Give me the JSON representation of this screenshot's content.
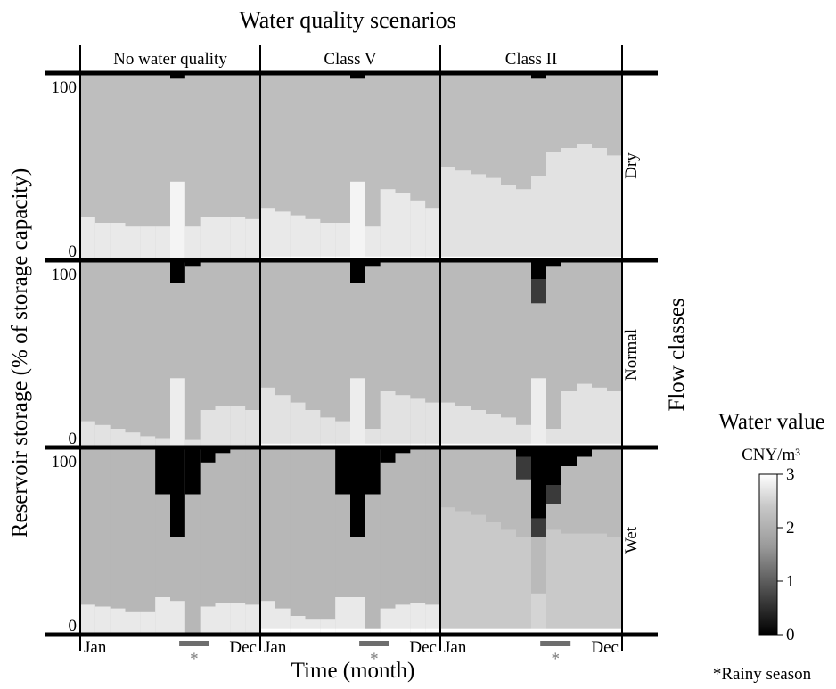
{
  "chart_data": {
    "type": "heatmap",
    "title": "Water quality scenarios",
    "xlabel": "Time (month)",
    "ylabel": "Reservoir storage (% of storage capacity)",
    "row_group_label": "Flow classes",
    "columns": [
      "No water quality",
      "Class V",
      "Class II"
    ],
    "rows": [
      "Dry",
      "Normal",
      "Wet"
    ],
    "x_tick_labels": [
      "Jan",
      "Dec"
    ],
    "y_ticks": [
      0,
      100
    ],
    "ylim": [
      0,
      100
    ],
    "months": 12,
    "rainy_season_marker": "*",
    "rainy_season_months": [
      7,
      9
    ],
    "footnote": "*Rainy season",
    "colorbar": {
      "title": "Water value",
      "unit": "CNY/m³",
      "range": [
        0,
        3
      ],
      "ticks": [
        "0",
        "1",
        "2",
        "3"
      ],
      "colors": [
        "#000000",
        "#bdbdbd",
        "#ffffff"
      ]
    },
    "panels": [
      {
        "row": "Dry",
        "column": "No water quality",
        "base": 2.1,
        "boundary": [
          23,
          20,
          20,
          18,
          18,
          18,
          42,
          18,
          23,
          23,
          23,
          22
        ],
        "lower": 2.7,
        "black_top": [
          0,
          0,
          0,
          0,
          0,
          0,
          3,
          0,
          0,
          0,
          0,
          0
        ],
        "black_mid": [
          0,
          0,
          0,
          0,
          0,
          0,
          0,
          0,
          0,
          0,
          0,
          0
        ],
        "highlight_to": [
          0,
          0,
          0,
          0,
          0,
          0,
          42,
          0,
          0,
          0,
          0,
          0
        ],
        "bottom_white": 1
      },
      {
        "row": "Dry",
        "column": "Class V",
        "base": 2.1,
        "boundary": [
          28,
          26,
          24,
          22,
          20,
          20,
          42,
          18,
          38,
          36,
          32,
          28
        ],
        "lower": 2.7,
        "black_top": [
          0,
          0,
          0,
          0,
          0,
          0,
          3,
          0,
          0,
          0,
          0,
          0
        ],
        "black_mid": [
          0,
          0,
          0,
          0,
          0,
          0,
          0,
          0,
          0,
          0,
          0,
          0
        ],
        "highlight_to": [
          0,
          0,
          0,
          0,
          0,
          0,
          42,
          0,
          0,
          0,
          0,
          0
        ],
        "bottom_white": 2
      },
      {
        "row": "Dry",
        "column": "Class II",
        "base": 2.1,
        "boundary": [
          50,
          48,
          46,
          44,
          40,
          38,
          45,
          58,
          60,
          62,
          60,
          56
        ],
        "lower": 2.6,
        "black_top": [
          0,
          0,
          0,
          0,
          0,
          0,
          3,
          0,
          0,
          0,
          0,
          0
        ],
        "black_mid": [
          0,
          0,
          0,
          0,
          0,
          0,
          0,
          0,
          0,
          0,
          0,
          0
        ],
        "highlight_to": [
          0,
          0,
          0,
          0,
          0,
          0,
          0,
          0,
          0,
          0,
          0,
          0
        ],
        "bottom_white": 2
      },
      {
        "row": "Normal",
        "column": "No water quality",
        "base": 2.05,
        "boundary": [
          14,
          12,
          10,
          8,
          6,
          5,
          37,
          4,
          20,
          22,
          22,
          20
        ],
        "lower": 2.6,
        "black_top": [
          0,
          0,
          0,
          0,
          0,
          0,
          12,
          3,
          0,
          0,
          0,
          0
        ],
        "black_mid": [
          0,
          0,
          0,
          0,
          0,
          0,
          0,
          0,
          0,
          0,
          0,
          0
        ],
        "highlight_to": [
          0,
          0,
          0,
          0,
          0,
          0,
          37,
          0,
          0,
          0,
          0,
          0
        ],
        "bottom_white": 1
      },
      {
        "row": "Normal",
        "column": "Class V",
        "base": 2.05,
        "boundary": [
          32,
          28,
          24,
          20,
          16,
          14,
          37,
          10,
          30,
          28,
          26,
          24
        ],
        "lower": 2.6,
        "black_top": [
          0,
          0,
          0,
          0,
          0,
          0,
          12,
          3,
          0,
          0,
          0,
          0
        ],
        "black_mid": [
          0,
          0,
          0,
          0,
          0,
          0,
          0,
          0,
          0,
          0,
          0,
          0
        ],
        "highlight_to": [
          0,
          0,
          0,
          0,
          0,
          0,
          37,
          0,
          0,
          0,
          0,
          0
        ],
        "bottom_white": 2
      },
      {
        "row": "Normal",
        "column": "Class II",
        "base": 2.05,
        "boundary": [
          24,
          22,
          20,
          18,
          16,
          12,
          37,
          10,
          30,
          34,
          32,
          30
        ],
        "lower": 2.6,
        "black_top": [
          0,
          0,
          0,
          0,
          0,
          0,
          10,
          3,
          0,
          0,
          0,
          0
        ],
        "black_mid": [
          0,
          0,
          0,
          0,
          0,
          0,
          13,
          0,
          0,
          0,
          0,
          0
        ],
        "highlight_to": [
          0,
          0,
          0,
          0,
          0,
          0,
          37,
          0,
          0,
          0,
          0,
          0
        ],
        "bottom_white": 2
      },
      {
        "row": "Wet",
        "column": "No water quality",
        "base": 2.0,
        "boundary": [
          16,
          15,
          14,
          12,
          12,
          20,
          18,
          0,
          15,
          17,
          17,
          16
        ],
        "lower": 2.7,
        "black_top": [
          0,
          0,
          0,
          0,
          0,
          25,
          48,
          25,
          8,
          3,
          0,
          0
        ],
        "black_mid": [
          0,
          0,
          0,
          0,
          0,
          0,
          0,
          0,
          0,
          0,
          0,
          0
        ],
        "highlight_to": [
          0,
          0,
          0,
          0,
          0,
          0,
          0,
          0,
          0,
          0,
          0,
          0
        ],
        "bottom_white": 1
      },
      {
        "row": "Wet",
        "column": "Class V",
        "base": 2.0,
        "boundary": [
          18,
          14,
          10,
          8,
          8,
          20,
          20,
          0,
          14,
          16,
          17,
          16
        ],
        "lower": 2.7,
        "black_top": [
          0,
          0,
          0,
          0,
          0,
          25,
          48,
          25,
          8,
          3,
          0,
          0
        ],
        "black_mid": [
          0,
          0,
          0,
          0,
          0,
          0,
          0,
          0,
          0,
          0,
          0,
          0
        ],
        "highlight_to": [
          0,
          0,
          0,
          0,
          0,
          0,
          0,
          0,
          0,
          0,
          0,
          0
        ],
        "bottom_white": 3
      },
      {
        "row": "Wet",
        "column": "Class II",
        "base": 2.05,
        "boundary": [
          68,
          66,
          64,
          60,
          56,
          52,
          22,
          56,
          54,
          54,
          54,
          52
        ],
        "lower": 2.25,
        "black_top": [
          0,
          0,
          0,
          0,
          0,
          5,
          38,
          20,
          10,
          5,
          0,
          0
        ],
        "black_mid": [
          0,
          0,
          0,
          0,
          0,
          12,
          10,
          10,
          0,
          0,
          0,
          0
        ],
        "highlight_to": [
          0,
          0,
          0,
          0,
          0,
          0,
          22,
          0,
          0,
          0,
          0,
          0
        ],
        "bottom_white": 3
      }
    ]
  }
}
